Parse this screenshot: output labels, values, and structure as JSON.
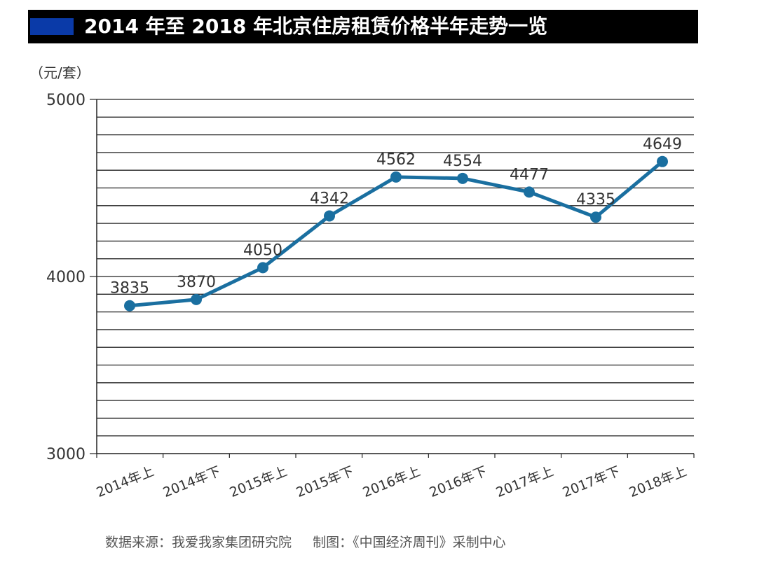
{
  "chart_data": {
    "type": "line",
    "title": "2014 年至 2018 年北京住房租赁价格半年走势一览",
    "unit_label": "（元/套）",
    "categories": [
      "2014年上",
      "2014年下",
      "2015年上",
      "2015年下",
      "2016年上",
      "2016年下",
      "2017年上",
      "2017年下",
      "2018年上"
    ],
    "series": [
      {
        "values": [
          3835,
          3870,
          4050,
          4342,
          4562,
          4554,
          4477,
          4335,
          4649
        ]
      }
    ],
    "data_labels": [
      "3835",
      "3870",
      "4050",
      "4342",
      "4562",
      "4554",
      "4477",
      "4335",
      "4649"
    ],
    "y_ticks": [
      "3000",
      "4000",
      "5000"
    ],
    "ylim": [
      3000,
      5000
    ],
    "grid": true,
    "grid_step": 100,
    "line_color": "#1a6fa0",
    "grid_color": "#222222"
  },
  "footer": {
    "source": "数据来源：我爱我家集团研究院",
    "credit": "制图：《中国经济周刊》采制中心"
  }
}
